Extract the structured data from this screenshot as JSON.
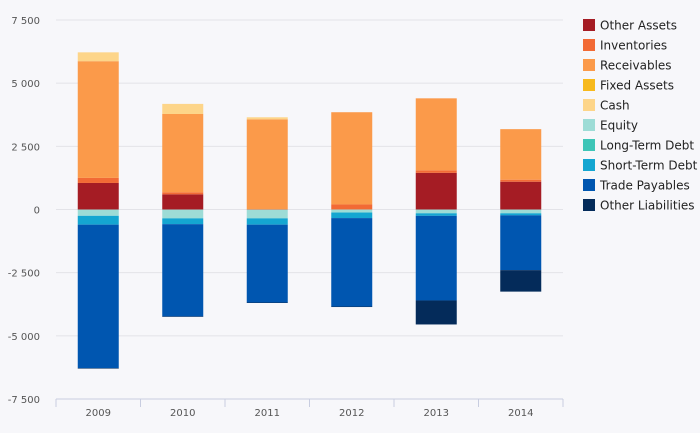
{
  "chart_data": {
    "type": "bar",
    "stacked": true,
    "title": "",
    "xlabel": "",
    "ylabel": "",
    "ylim": [
      -7500,
      7500
    ],
    "yticks": [
      7500,
      5000,
      2500,
      0,
      -2500,
      -5000,
      -7500
    ],
    "ytick_labels": [
      "7 500",
      "5 000",
      "2 500",
      "0",
      "-2 500",
      "-5 000",
      "-7 500"
    ],
    "grid": true,
    "legend_position": "right",
    "categories": [
      "2009",
      "2010",
      "2011",
      "2012",
      "2013",
      "2014"
    ],
    "series": [
      {
        "name": "Other Assets",
        "color": "#a51c24",
        "values": [
          1050,
          600,
          0,
          0,
          1450,
          1100
        ]
      },
      {
        "name": "Inventories",
        "color": "#f26a35",
        "values": [
          200,
          80,
          20,
          200,
          100,
          80
        ]
      },
      {
        "name": "Receivables",
        "color": "#fb9a4a",
        "values": [
          4620,
          3100,
          3550,
          3650,
          2850,
          2000
        ]
      },
      {
        "name": "Fixed Assets",
        "color": "#f7b91c",
        "values": [
          0,
          0,
          0,
          0,
          0,
          0
        ]
      },
      {
        "name": "Cash",
        "color": "#fdd589",
        "values": [
          350,
          400,
          80,
          0,
          0,
          0
        ]
      },
      {
        "name": "Equity",
        "color": "#9ddcd6",
        "values": [
          -250,
          -350,
          -350,
          -120,
          -150,
          -150
        ]
      },
      {
        "name": "Long-Term Debt",
        "color": "#3ec5b7",
        "values": [
          0,
          0,
          0,
          0,
          0,
          0
        ]
      },
      {
        "name": "Short-Term Debt",
        "color": "#14a6d1",
        "values": [
          -350,
          -230,
          -250,
          -220,
          -100,
          -80
        ]
      },
      {
        "name": "Trade Payables",
        "color": "#0056b0",
        "values": [
          -5680,
          -3650,
          -3080,
          -3500,
          -3350,
          -2170
        ]
      },
      {
        "name": "Other Liabilities",
        "color": "#042b5a",
        "values": [
          -20,
          -20,
          -20,
          -20,
          -950,
          -850
        ]
      }
    ]
  }
}
